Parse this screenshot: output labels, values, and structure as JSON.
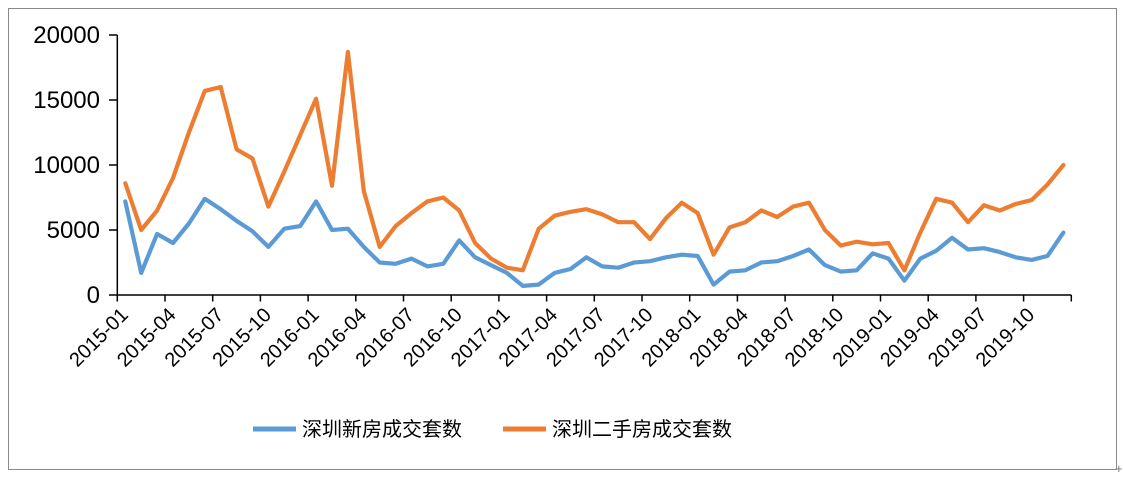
{
  "chart_data": {
    "type": "line",
    "title": "",
    "xlabel": "",
    "ylabel": "",
    "ylim": [
      0,
      20000
    ],
    "grid": "off",
    "legend_position": "bottom-center",
    "y_ticks": [
      0,
      5000,
      10000,
      15000,
      20000
    ],
    "x_tick_labels": [
      "2015-01",
      "2015-04",
      "2015-07",
      "2015-10",
      "2016-01",
      "2016-04",
      "2016-07",
      "2016-10",
      "2017-01",
      "2017-04",
      "2017-07",
      "2017-10",
      "2018-01",
      "2018-04",
      "2018-07",
      "2018-10",
      "2019-01",
      "2019-04",
      "2019-07",
      "2019-10"
    ],
    "categories": [
      "2015-01",
      "2015-02",
      "2015-03",
      "2015-04",
      "2015-05",
      "2015-06",
      "2015-07",
      "2015-08",
      "2015-09",
      "2015-10",
      "2015-11",
      "2015-12",
      "2016-01",
      "2016-02",
      "2016-03",
      "2016-04",
      "2016-05",
      "2016-06",
      "2016-07",
      "2016-08",
      "2016-09",
      "2016-10",
      "2016-11",
      "2016-12",
      "2017-01",
      "2017-02",
      "2017-03",
      "2017-04",
      "2017-05",
      "2017-06",
      "2017-07",
      "2017-08",
      "2017-09",
      "2017-10",
      "2017-11",
      "2017-12",
      "2018-01",
      "2018-02",
      "2018-03",
      "2018-04",
      "2018-05",
      "2018-06",
      "2018-07",
      "2018-08",
      "2018-09",
      "2018-10",
      "2018-11",
      "2018-12",
      "2019-01",
      "2019-02",
      "2019-03",
      "2019-04",
      "2019-05",
      "2019-06",
      "2019-07",
      "2019-08",
      "2019-09",
      "2019-10",
      "2019-11",
      "2019-12"
    ],
    "series": [
      {
        "name": "深圳新房成交套数",
        "color": "#5B9BD5",
        "values": [
          7200,
          1700,
          4700,
          4000,
          5500,
          7400,
          6600,
          5700,
          4900,
          3700,
          5100,
          5300,
          7200,
          5000,
          5100,
          3700,
          2500,
          2400,
          2800,
          2200,
          2400,
          4200,
          2900,
          2300,
          1700,
          700,
          800,
          1700,
          2000,
          2900,
          2200,
          2100,
          2500,
          2600,
          2900,
          3100,
          3000,
          800,
          1800,
          1900,
          2500,
          2600,
          3000,
          3500,
          2300,
          1800,
          1900,
          3200,
          2800,
          1100,
          2800,
          3400,
          4400,
          3500,
          3600,
          3300,
          2900,
          2700,
          3000,
          4800
        ]
      },
      {
        "name": "深圳二手房成交套数",
        "color": "#ED7D31",
        "values": [
          8600,
          5000,
          6500,
          9000,
          12500,
          15700,
          16000,
          11200,
          10500,
          6800,
          9500,
          12300,
          15100,
          8400,
          18700,
          8000,
          3700,
          5300,
          6300,
          7200,
          7500,
          6500,
          4000,
          2800,
          2100,
          1900,
          5100,
          6100,
          6400,
          6600,
          6200,
          5600,
          5600,
          4300,
          5900,
          7100,
          6300,
          3100,
          5200,
          5600,
          6500,
          6000,
          6800,
          7100,
          5000,
          3800,
          4100,
          3900,
          4000,
          1900,
          4800,
          7400,
          7100,
          5600,
          6900,
          6500,
          7000,
          7300,
          8500,
          10000
        ]
      }
    ]
  },
  "axis_colors": {
    "axis_line": "#000000",
    "border": "#898989"
  },
  "misc": {
    "corner_mark": "+"
  }
}
